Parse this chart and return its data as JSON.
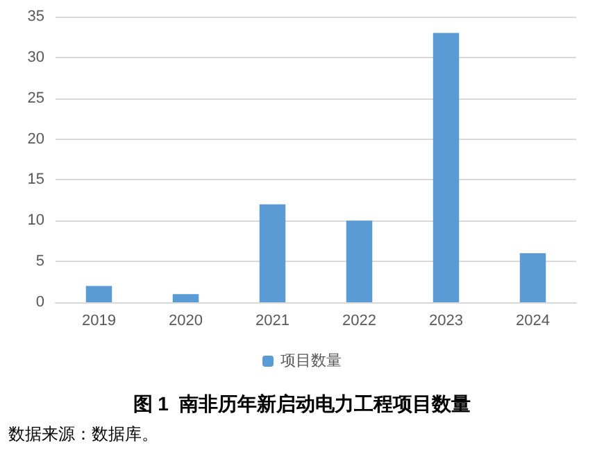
{
  "chart_data": {
    "type": "bar",
    "title": "图 1  南非历年新启动电力工程项目数量",
    "annotations": [
      "数据来源：数据库。"
    ],
    "categories": [
      "2019",
      "2020",
      "2021",
      "2022",
      "2023",
      "2024"
    ],
    "series": [
      {
        "name": "项目数量",
        "color": "#5b9bd5",
        "values": [
          2,
          1,
          12,
          10,
          33,
          6
        ]
      }
    ],
    "ylim": [
      0,
      35
    ],
    "yticks": [
      0,
      5,
      10,
      15,
      20,
      25,
      30,
      35
    ],
    "grid": "y",
    "legend": "bottom"
  }
}
